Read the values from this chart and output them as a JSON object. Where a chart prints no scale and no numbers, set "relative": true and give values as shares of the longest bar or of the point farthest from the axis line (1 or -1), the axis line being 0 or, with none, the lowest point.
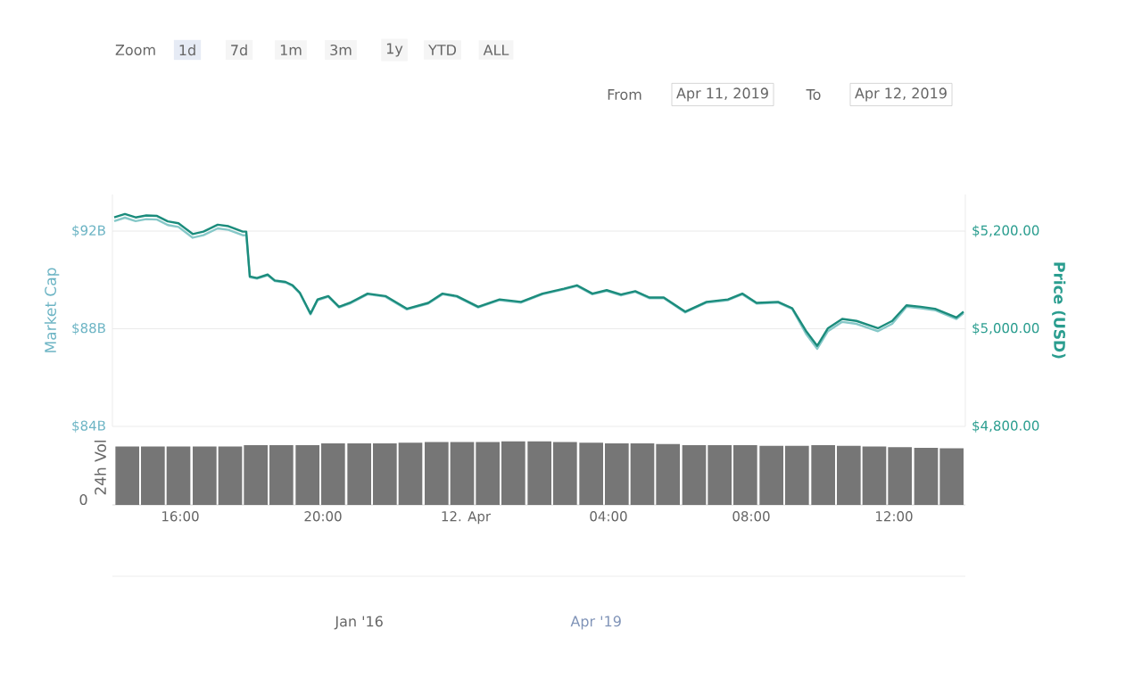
{
  "chart_data": [
    {
      "type": "line",
      "ylabel": "Market Cap",
      "y2label": "Price (USD)",
      "x": [
        "2019-04-11T14:09",
        "2019-04-11T14:27",
        "2019-04-11T14:45",
        "2019-04-11T15:03",
        "2019-04-11T15:21",
        "2019-04-11T15:39",
        "2019-04-11T15:57",
        "2019-04-11T16:21",
        "2019-04-11T16:39",
        "2019-04-11T17:03",
        "2019-04-11T17:21",
        "2019-04-11T17:45",
        "2019-04-11T17:51",
        "2019-04-11T17:57",
        "2019-04-11T18:09",
        "2019-04-11T18:27",
        "2019-04-11T18:39",
        "2019-04-11T18:57",
        "2019-04-11T19:09",
        "2019-04-11T19:21",
        "2019-04-11T19:39",
        "2019-04-11T19:51",
        "2019-04-11T20:09",
        "2019-04-11T20:27",
        "2019-04-11T20:45",
        "2019-04-11T21:15",
        "2019-04-11T21:45",
        "2019-04-11T22:21",
        "2019-04-11T22:57",
        "2019-04-11T23:21",
        "2019-04-11T23:45",
        "2019-04-12T00:21",
        "2019-04-12T00:57",
        "2019-04-12T01:33",
        "2019-04-12T02:09",
        "2019-04-12T02:45",
        "2019-04-12T03:07",
        "2019-04-12T03:33",
        "2019-04-12T03:57",
        "2019-04-12T04:21",
        "2019-04-12T04:45",
        "2019-04-12T05:09",
        "2019-04-12T05:33",
        "2019-04-12T06:09",
        "2019-04-12T06:45",
        "2019-04-12T07:21",
        "2019-04-12T07:45",
        "2019-04-12T08:09",
        "2019-04-12T08:45",
        "2019-04-12T09:09",
        "2019-04-12T09:33",
        "2019-04-12T09:51",
        "2019-04-12T10:09",
        "2019-04-12T10:33",
        "2019-04-12T10:57",
        "2019-04-12T11:33",
        "2019-04-12T11:57",
        "2019-04-12T12:21",
        "2019-04-12T12:45",
        "2019-04-12T13:09",
        "2019-04-12T13:45",
        "2019-04-12T13:57"
      ],
      "series": [
        {
          "color": "#86c8c8",
          "values": [
            92.41,
            92.55,
            92.41,
            92.49,
            92.47,
            92.25,
            92.17,
            91.73,
            91.83,
            92.11,
            92.05,
            91.83,
            91.83,
            90.11,
            90.05,
            90.19,
            89.95,
            89.89,
            89.75,
            89.45,
            88.59,
            89.17,
            89.31,
            88.87,
            89.03,
            89.41,
            89.31,
            88.79,
            89.03,
            89.41,
            89.31,
            88.87,
            89.17,
            89.07,
            89.41,
            89.61,
            89.75,
            89.41,
            89.55,
            89.37,
            89.51,
            89.25,
            89.25,
            88.67,
            89.07,
            89.17,
            89.41,
            89.03,
            89.07,
            88.81,
            87.76,
            87.18,
            87.9,
            88.28,
            88.2,
            87.9,
            88.2,
            88.9,
            88.84,
            88.76,
            88.4,
            88.64
          ]
        },
        {
          "color": "#1b8c7c",
          "axis": "y2",
          "values": [
            5228,
            5235,
            5228,
            5232,
            5231,
            5220,
            5216,
            5194,
            5199,
            5213,
            5210,
            5199,
            5199,
            5107,
            5104,
            5111,
            5099,
            5096,
            5089,
            5074,
            5031,
            5060,
            5067,
            5045,
            5053,
            5072,
            5067,
            5041,
            5053,
            5072,
            5067,
            5045,
            5060,
            5055,
            5072,
            5082,
            5089,
            5072,
            5079,
            5070,
            5077,
            5064,
            5064,
            5035,
            5055,
            5060,
            5072,
            5053,
            5055,
            5042,
            4994,
            4965,
            5001,
            5020,
            5016,
            5001,
            5016,
            5048,
            5045,
            5041,
            5023,
            5035
          ]
        }
      ],
      "xlim": [
        "2019-04-11T14:06",
        "2019-04-12T14:00"
      ],
      "ylim": [
        84,
        93.5
      ],
      "yticks": [
        {
          "value": 84,
          "label": "$84B"
        },
        {
          "value": 88,
          "label": "$88B"
        },
        {
          "value": 92,
          "label": "$92B"
        }
      ],
      "y2lim": [
        4800,
        5275
      ],
      "y2ticks": [
        {
          "value": 4800,
          "label": "$4,800.00"
        },
        {
          "value": 5000,
          "label": "$5,000.00"
        },
        {
          "value": 5200,
          "label": "$5,200.00"
        }
      ],
      "grid": "y",
      "tick_labels": "y",
      "annotations": [
        "Zoom",
        "1d",
        "7d",
        "1m",
        "3m",
        "1y",
        "YTD",
        "ALL",
        "From",
        "Apr 11, 2019",
        "To",
        "Apr 12, 2019"
      ]
    },
    {
      "type": "bar",
      "relative": true,
      "ylabel": "24h Vol",
      "color": "#767676",
      "x": [
        "2019-04-11T14:31",
        "2019-04-11T15:14",
        "2019-04-11T15:57",
        "2019-04-11T16:41",
        "2019-04-11T17:24",
        "2019-04-11T18:07",
        "2019-04-11T18:50",
        "2019-04-11T19:34",
        "2019-04-11T20:17",
        "2019-04-11T21:01",
        "2019-04-11T21:44",
        "2019-04-11T22:27",
        "2019-04-11T23:11",
        "2019-04-11T23:54",
        "2019-04-12T00:37",
        "2019-04-12T01:20",
        "2019-04-12T02:04",
        "2019-04-12T02:47",
        "2019-04-12T03:31",
        "2019-04-12T04:14",
        "2019-04-12T04:57",
        "2019-04-12T05:40",
        "2019-04-12T06:24",
        "2019-04-12T07:07",
        "2019-04-12T07:50",
        "2019-04-12T08:34",
        "2019-04-12T09:17",
        "2019-04-12T10:01",
        "2019-04-12T10:44",
        "2019-04-12T11:27",
        "2019-04-12T12:10",
        "2019-04-12T12:54",
        "2019-04-12T13:37"
      ],
      "values": [
        0.92,
        0.92,
        0.92,
        0.92,
        0.92,
        0.94,
        0.94,
        0.94,
        0.97,
        0.97,
        0.97,
        0.98,
        0.99,
        0.99,
        0.99,
        1,
        1,
        0.99,
        0.98,
        0.97,
        0.97,
        0.96,
        0.94,
        0.94,
        0.94,
        0.93,
        0.93,
        0.94,
        0.93,
        0.92,
        0.91,
        0.9,
        0.89
      ],
      "xlim": [
        "2019-04-11T14:06",
        "2019-04-12T14:00"
      ],
      "xticks": [
        {
          "value": "2019-04-11T16:00",
          "label": "16:00"
        },
        {
          "value": "2019-04-11T20:00",
          "label": "20:00"
        },
        {
          "value": "2019-04-12T00:00",
          "label": "12. Apr"
        },
        {
          "value": "2019-04-12T04:00",
          "label": "04:00"
        },
        {
          "value": "2019-04-12T08:00",
          "label": "08:00"
        },
        {
          "value": "2019-04-12T12:00",
          "label": "12:00"
        }
      ],
      "tick_labels": "x",
      "annotations": [
        "0",
        "Jan '16",
        "Apr '19"
      ]
    }
  ]
}
